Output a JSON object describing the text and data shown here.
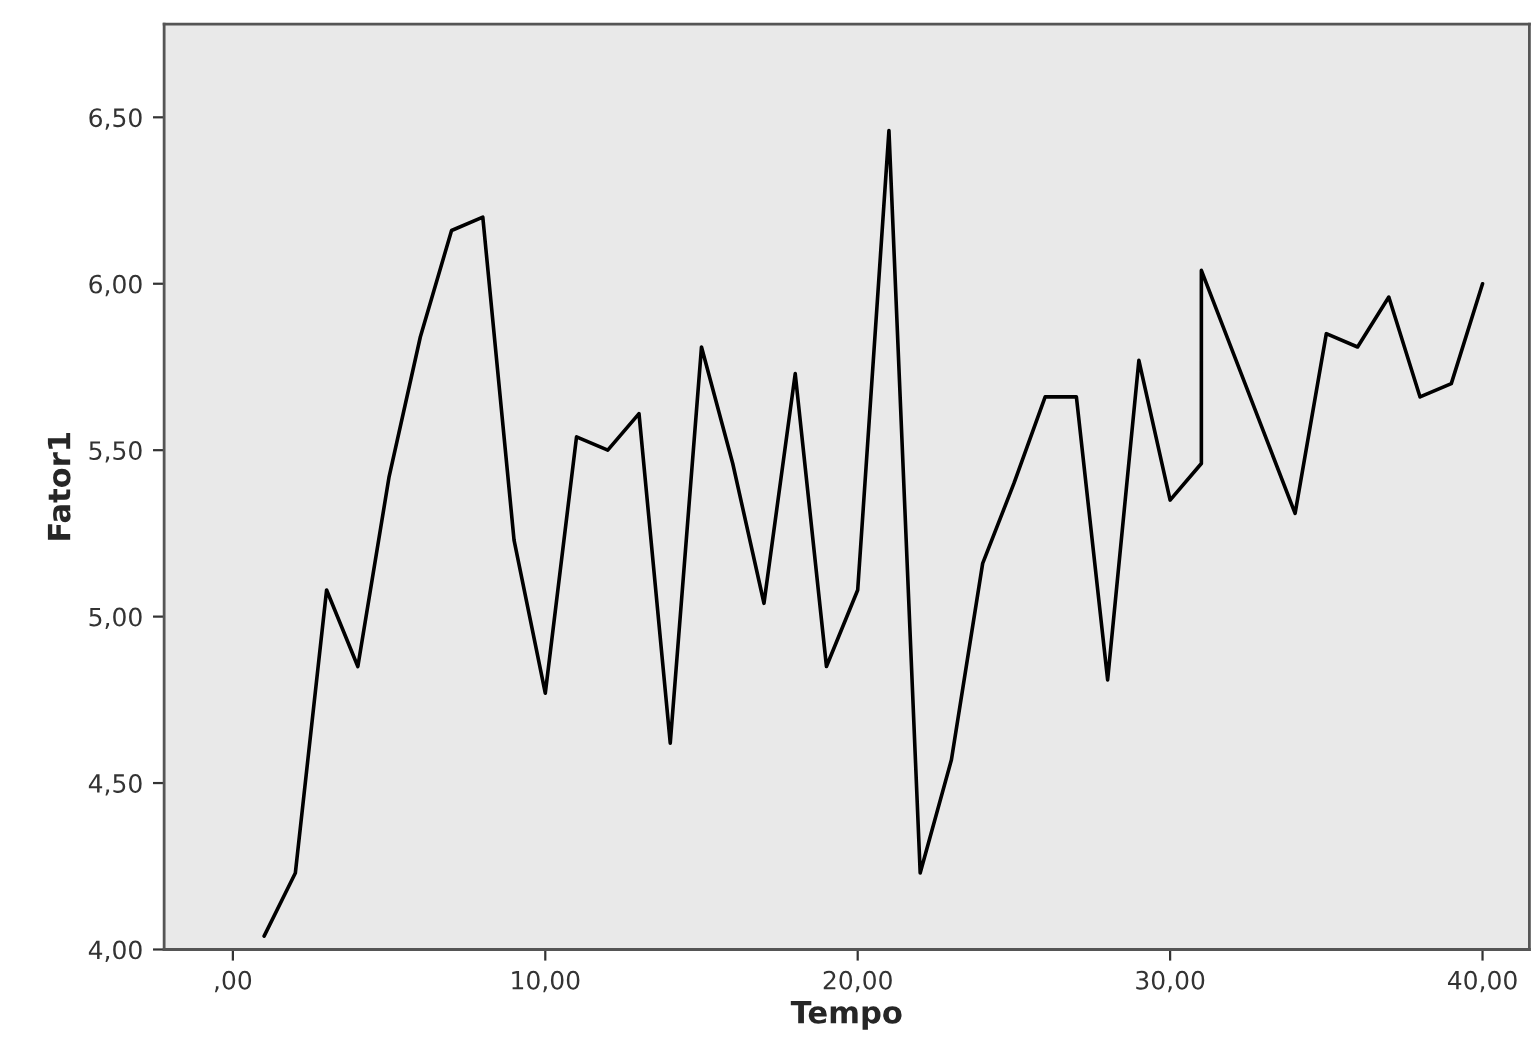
{
  "chart_data": {
    "type": "line",
    "xlabel": "Tempo",
    "ylabel": "Fator1",
    "x": [
      1,
      2,
      3,
      4,
      5,
      6,
      7,
      8,
      9,
      10,
      11,
      12,
      13,
      14,
      15,
      16,
      17,
      18,
      19,
      20,
      21,
      22,
      23,
      24,
      25,
      26,
      27,
      28,
      29,
      30,
      31,
      31,
      34,
      35,
      36,
      37,
      38,
      39,
      40
    ],
    "series": [
      {
        "color": "#000000",
        "values": [
          4.04,
          4.23,
          5.08,
          4.85,
          5.42,
          5.84,
          6.16,
          6.2,
          5.23,
          4.77,
          5.54,
          5.5,
          5.61,
          4.62,
          5.81,
          5.46,
          5.04,
          5.73,
          4.85,
          5.08,
          6.46,
          4.23,
          4.57,
          5.16,
          5.4,
          5.66,
          5.66,
          4.81,
          5.77,
          5.35,
          5.46,
          6.04,
          5.31,
          5.85,
          5.81,
          5.96,
          5.66,
          5.7,
          6.0
        ]
      }
    ],
    "xlim": [
      -2.2,
      41.5
    ],
    "ylim": [
      4.0,
      6.78
    ],
    "xticks": [
      {
        "value": 0,
        "label": ",00"
      },
      {
        "value": 10,
        "label": "10,00"
      },
      {
        "value": 20,
        "label": "20,00"
      },
      {
        "value": 30,
        "label": "30,00"
      },
      {
        "value": 40,
        "label": "40,00"
      }
    ],
    "yticks": [
      {
        "value": 4,
        "label": "4,00"
      },
      {
        "value": 4.5,
        "label": "4,50"
      },
      {
        "value": 5,
        "label": "5,00"
      },
      {
        "value": 5.5,
        "label": "5,50"
      },
      {
        "value": 6,
        "label": "6,00"
      },
      {
        "value": 6.5,
        "label": "6,50"
      }
    ],
    "grid": false,
    "legend": false,
    "marker": "none",
    "line_style": "solid"
  }
}
